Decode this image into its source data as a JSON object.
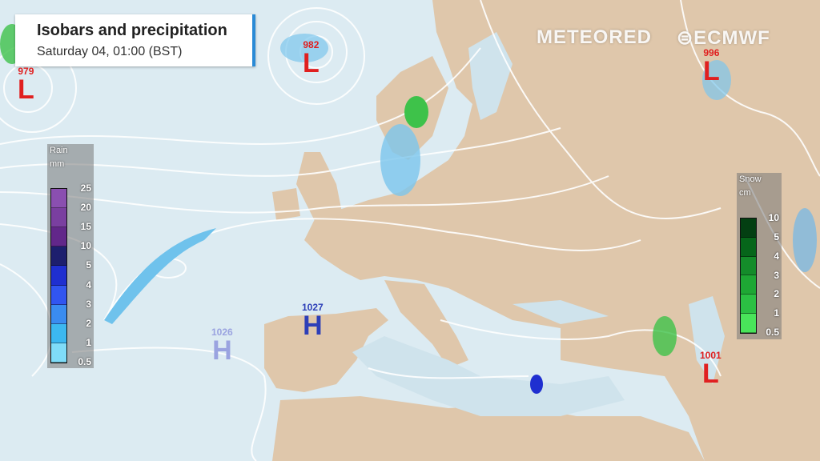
{
  "header": {
    "title": "Isobars and precipitation",
    "subtitle": "Saturday 04, 01:00 (BST)"
  },
  "branding": {
    "meteored": "METEORED",
    "ecmwf": "ECMWF"
  },
  "rain_legend": {
    "title": "Rain",
    "unit": "mm",
    "levels": [
      "25",
      "20",
      "15",
      "10",
      "5",
      "4",
      "3",
      "2",
      "1",
      "0.5"
    ],
    "colors": [
      "#8a4fb0",
      "#7a3fa0",
      "#62278a",
      "#1d1f6e",
      "#1f2fd0",
      "#3155f0",
      "#3a8cf0",
      "#3cb8f0",
      "#7fdcf8"
    ]
  },
  "snow_legend": {
    "title": "Snow",
    "unit": "cm",
    "levels": [
      "10",
      "5",
      "4",
      "3",
      "2",
      "1",
      "0.5"
    ],
    "colors": [
      "#033f12",
      "#06661a",
      "#148c2a",
      "#1ea734",
      "#2bc043",
      "#49e45a"
    ]
  },
  "pressure_centers": [
    {
      "type": "L",
      "value": "979",
      "color": "#e02020"
    },
    {
      "type": "L",
      "value": "982",
      "color": "#e02020"
    },
    {
      "type": "L",
      "value": "996",
      "color": "#e02020"
    },
    {
      "type": "H",
      "value": "1027",
      "color": "#2d3fb8"
    },
    {
      "type": "H",
      "value": "1026",
      "color": "#9aa3e0"
    },
    {
      "type": "L",
      "value": "1001",
      "color": "#e02020"
    }
  ]
}
